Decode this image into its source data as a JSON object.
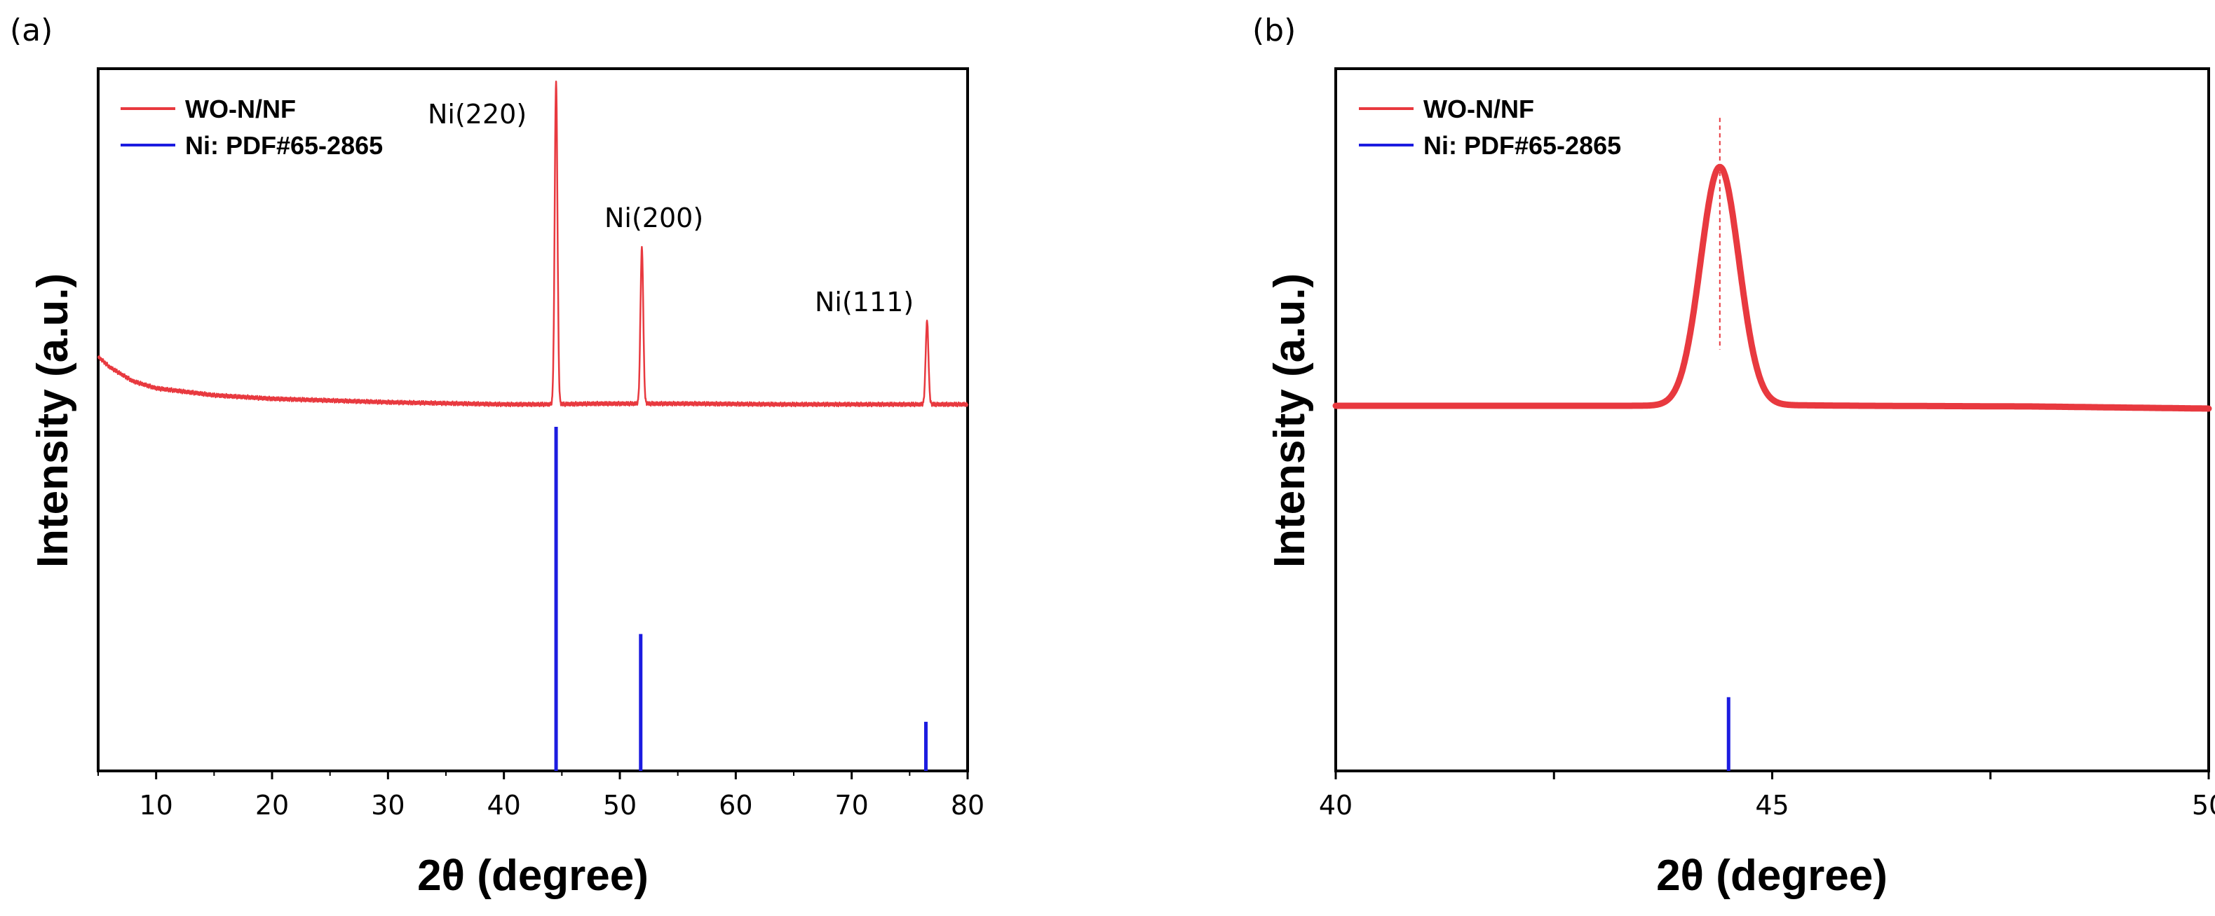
{
  "chart_data": [
    {
      "type": "line",
      "panel_label": "(a)",
      "xlabel": "2θ (degree)",
      "ylabel": "Intensity (a.u.)",
      "xlim": [
        5,
        80
      ],
      "ylim": [
        0,
        1
      ],
      "xticks": [
        10,
        20,
        30,
        40,
        50,
        60,
        70,
        80
      ],
      "xtick_labels": [
        "10",
        "20",
        "30",
        "40",
        "50",
        "60",
        "70",
        "80"
      ],
      "yticks_shown": false,
      "legend": {
        "placement": "top-left",
        "entries": [
          {
            "name": "WO-N/NF",
            "color": "#e8393f"
          },
          {
            "name": "Ni: PDF#65-2865",
            "color": "#1c1ce0"
          }
        ]
      },
      "series": [
        {
          "name": "WO-N/NF",
          "color": "#e8393f",
          "baseline": [
            [
              5,
              0.59
            ],
            [
              6,
              0.575
            ],
            [
              8,
              0.555
            ],
            [
              10,
              0.545
            ],
            [
              15,
              0.535
            ],
            [
              20,
              0.53
            ],
            [
              30,
              0.525
            ],
            [
              40,
              0.522
            ],
            [
              44,
              0.522
            ],
            [
              48,
              0.523
            ],
            [
              56,
              0.523
            ],
            [
              64,
              0.522
            ],
            [
              74,
              0.522
            ],
            [
              80,
              0.522
            ]
          ],
          "peaks": [
            {
              "x": 44.5,
              "y": 0.98,
              "label": "Ni(220)"
            },
            {
              "x": 51.9,
              "y": 0.745,
              "label": "Ni(200)"
            },
            {
              "x": 76.5,
              "y": 0.64,
              "label": "Ni(111)"
            }
          ]
        },
        {
          "name": "Ni: PDF#65-2865",
          "color": "#1c1ce0",
          "type": "stick",
          "x": [
            44.5,
            51.8,
            76.4
          ],
          "values": [
            0.49,
            0.195,
            0.07
          ]
        }
      ]
    },
    {
      "type": "line",
      "panel_label": "(b)",
      "xlabel": "2θ (degree)",
      "ylabel": "Intensity (a.u.)",
      "xlim": [
        40,
        50
      ],
      "ylim": [
        0,
        1
      ],
      "xticks": [
        40,
        42.5,
        45,
        47.5,
        50
      ],
      "xtick_labels": [
        "40",
        "",
        "45",
        "",
        "50"
      ],
      "yticks_shown": false,
      "legend": {
        "placement": "top-left",
        "entries": [
          {
            "name": "WO-N/NF",
            "color": "#e8393f"
          },
          {
            "name": "Ni: PDF#65-2865",
            "color": "#1c1ce0"
          }
        ]
      },
      "series": [
        {
          "name": "WO-N/NF",
          "color": "#e8393f",
          "baseline": [
            [
              40,
              0.52
            ],
            [
              42,
              0.52
            ],
            [
              43,
              0.52
            ],
            [
              44,
              0.52
            ],
            [
              45,
              0.521
            ],
            [
              46,
              0.52
            ],
            [
              48,
              0.519
            ],
            [
              50,
              0.516
            ]
          ],
          "peaks": [
            {
              "x": 44.4,
              "y": 0.86,
              "width": 0.22
            }
          ],
          "marker_line_x": 44.4
        },
        {
          "name": "Ni: PDF#65-2865",
          "color": "#1c1ce0",
          "type": "stick",
          "x": [
            44.5
          ],
          "values": [
            0.105
          ]
        }
      ]
    }
  ]
}
